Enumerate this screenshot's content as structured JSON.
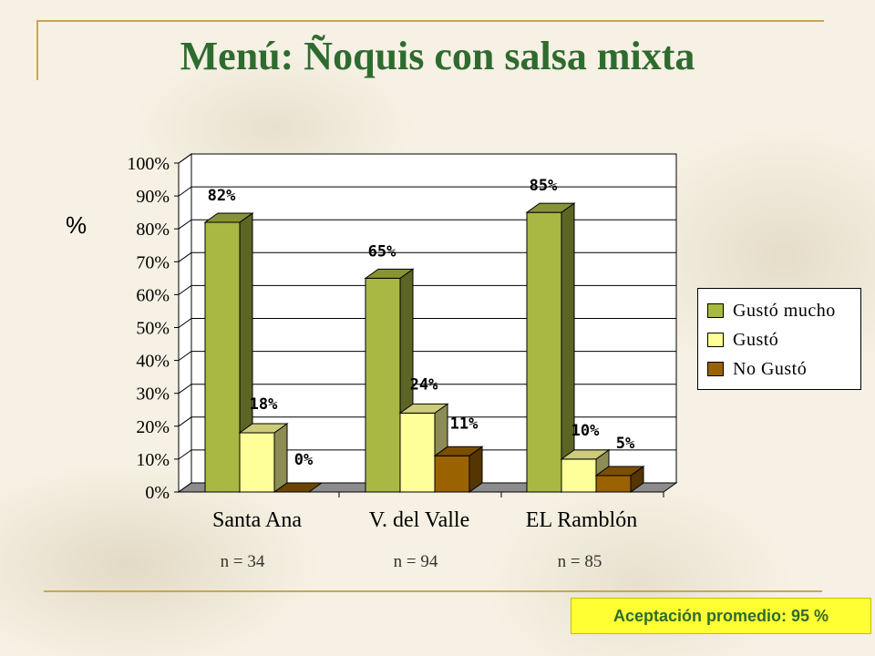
{
  "slide": {
    "title": "Menú: Ñoquis con salsa mixta",
    "y_unit_label": "%",
    "n_labels": [
      "n = 34",
      "n = 94",
      "n = 85"
    ],
    "average_acceptance": "Aceptación promedio: 95 %"
  },
  "legend": {
    "items": [
      "Gustó mucho",
      "Gustó",
      "No Gustó"
    ]
  },
  "colors": {
    "gusto_mucho": "#a9b843",
    "gusto": "#ffff99",
    "no_gusto": "#9a6200",
    "title": "#2f6b2f",
    "accent_rule": "#c8a94a",
    "badge_bg": "#ffff33"
  },
  "chart_data": {
    "type": "bar",
    "categories": [
      "Santa Ana",
      "V. del Valle",
      "EL Ramblón"
    ],
    "series": [
      {
        "name": "Gustó mucho",
        "values": [
          82,
          65,
          85
        ],
        "labels": [
          "82%",
          "65%",
          "85%"
        ]
      },
      {
        "name": "Gustó",
        "values": [
          18,
          24,
          10
        ],
        "labels": [
          "18%",
          "24%",
          "10%"
        ]
      },
      {
        "name": "No Gustó",
        "values": [
          0,
          11,
          5
        ],
        "labels": [
          "0%",
          "11%",
          "5%"
        ]
      }
    ],
    "ylim": [
      0,
      100
    ],
    "yticks": [
      "0%",
      "10%",
      "20%",
      "30%",
      "40%",
      "50%",
      "60%",
      "70%",
      "80%",
      "90%",
      "100%"
    ],
    "grid": true,
    "legend_position": "right",
    "style": "3d"
  }
}
